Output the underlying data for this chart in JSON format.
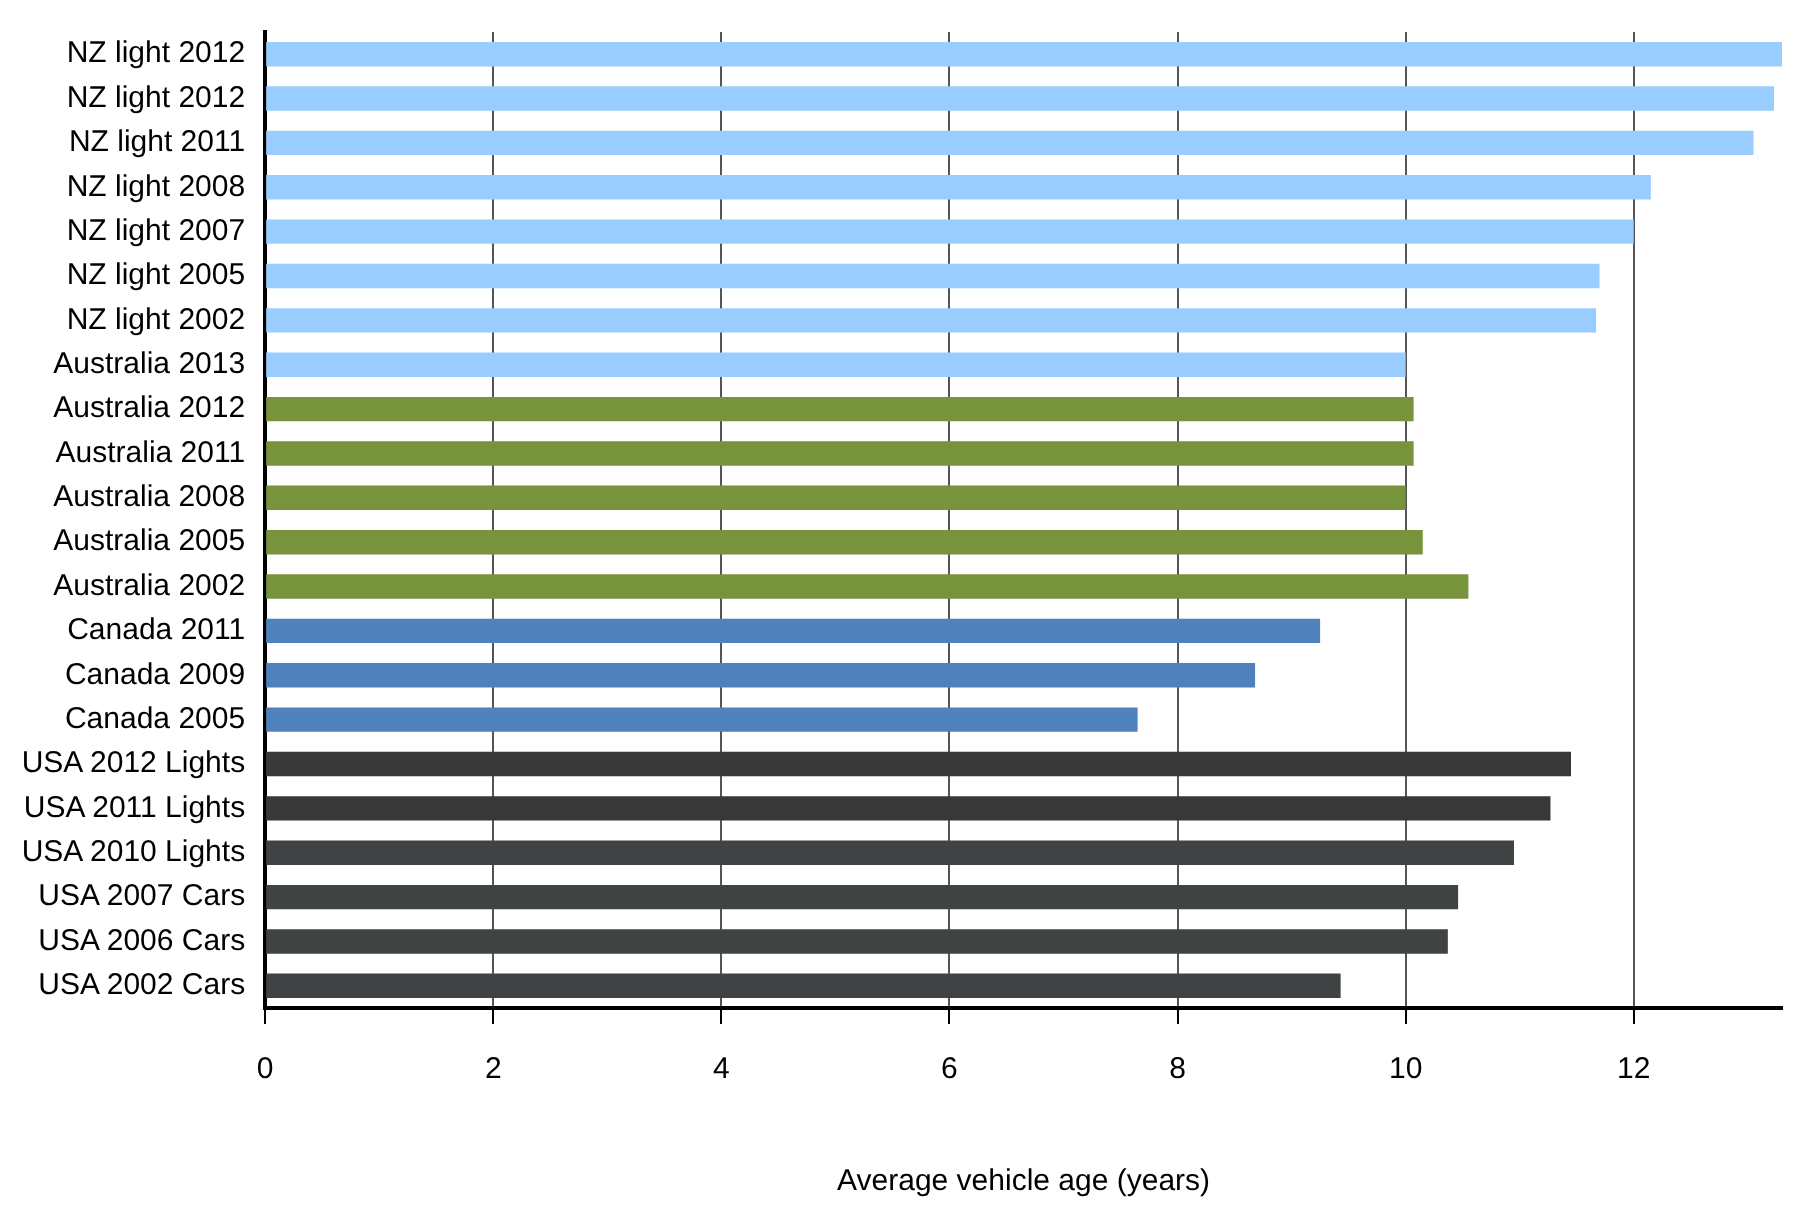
{
  "chart_data": {
    "type": "bar",
    "orientation": "horizontal",
    "xlabel": "Average vehicle age (years)",
    "categories": [
      "NZ light 2012",
      "NZ light 2012",
      "NZ light 2011",
      "NZ light 2008",
      "NZ light 2007",
      "NZ light 2005",
      "NZ light 2002",
      "Australia 2013",
      "Australia 2012",
      "Australia 2011",
      "Australia 2008",
      "Australia 2005",
      "Australia 2002",
      "Canada 2011",
      "Canada 2009",
      "Canada 2005",
      "USA 2012 Lights",
      "USA 2011 Lights",
      "USA 2010 Lights",
      "USA 2007 Cars",
      "USA 2006 Cars",
      "USA 2002 Cars"
    ],
    "values": [
      13.3,
      13.23,
      13.05,
      12.15,
      12.0,
      11.7,
      11.67,
      10.0,
      10.07,
      10.07,
      10.0,
      10.15,
      10.55,
      9.25,
      8.68,
      7.65,
      11.45,
      11.27,
      10.95,
      10.46,
      10.37,
      9.43
    ],
    "colors": [
      "#99ccff",
      "#99ccff",
      "#99ccff",
      "#99ccff",
      "#99ccff",
      "#99ccff",
      "#99ccff",
      "#99ccff",
      "#77933c",
      "#77933c",
      "#77933c",
      "#77933c",
      "#77933c",
      "#4f81bd",
      "#4f81bd",
      "#4f81bd",
      "#383838",
      "#383838",
      "#404343",
      "#404343",
      "#404343",
      "#404343"
    ],
    "xlim": [
      0,
      13.3
    ],
    "xticks": [
      0,
      2,
      4,
      6,
      8,
      10,
      12
    ],
    "grid": "x",
    "legend": false
  }
}
